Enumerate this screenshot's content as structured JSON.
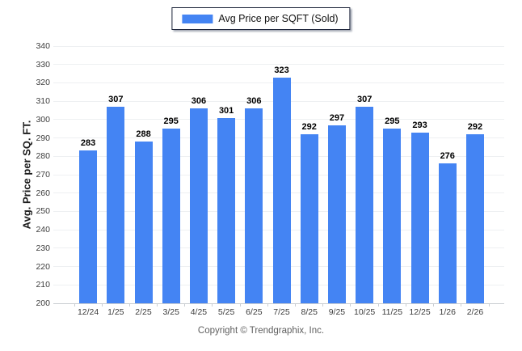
{
  "legend": {
    "label": "Avg Price per SQFT (Sold)",
    "swatch_color": "#4484f3"
  },
  "chart_data": {
    "type": "bar",
    "title": "",
    "categories": [
      "12/24",
      "1/25",
      "2/25",
      "3/25",
      "4/25",
      "5/25",
      "6/25",
      "7/25",
      "8/25",
      "9/25",
      "10/25",
      "11/25",
      "12/25",
      "1/26",
      "2/26"
    ],
    "series": [
      {
        "name": "Avg Price per SQFT (Sold)",
        "values": [
          283,
          307,
          288,
          295,
          306,
          301,
          306,
          323,
          292,
          297,
          307,
          295,
          293,
          276,
          292
        ]
      }
    ],
    "xlabel": "",
    "ylabel": "Avg. Price per SQ. FT.",
    "ylim": [
      200,
      340
    ],
    "ytick_step": 10,
    "bar_color": "#4484f3",
    "grid": true,
    "legend_position": "top-center",
    "value_labels": true
  },
  "footer": {
    "copyright": "Copyright © Trendgraphix, Inc."
  }
}
